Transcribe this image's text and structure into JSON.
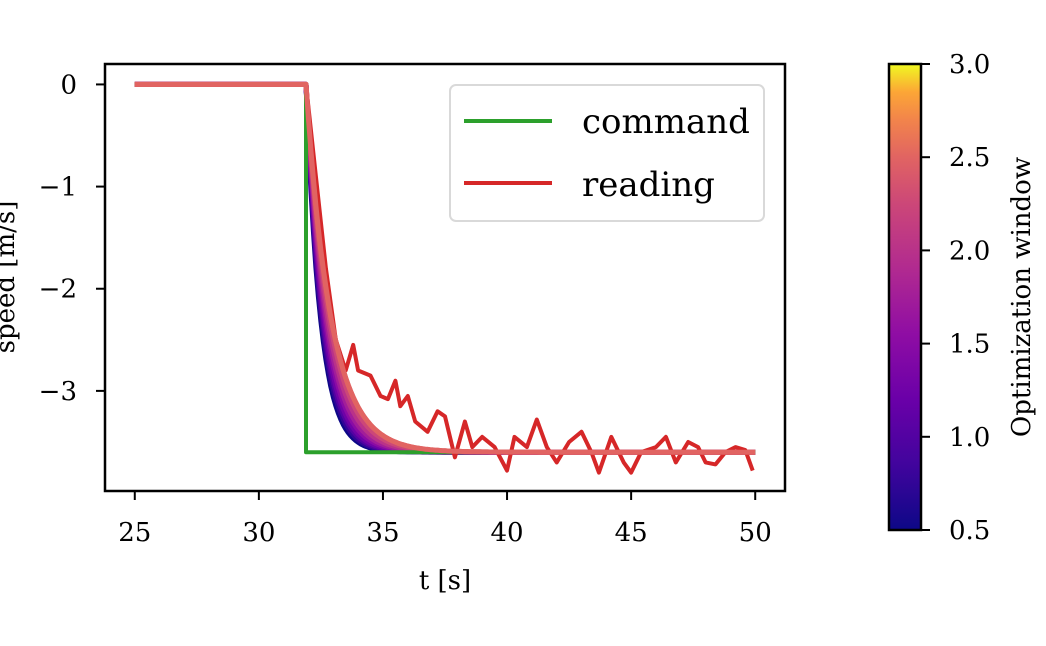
{
  "chart_data": {
    "type": "line",
    "title": "",
    "xlabel": "t [s]",
    "ylabel": "speed [m/s]",
    "xlim": [
      23.8,
      51.2
    ],
    "ylim": [
      -3.98,
      0.2
    ],
    "xticks": [
      25,
      30,
      35,
      40,
      45,
      50
    ],
    "yticks": [
      0,
      -1,
      -2,
      -3
    ],
    "xtick_labels": [
      "25",
      "30",
      "35",
      "40",
      "45",
      "50"
    ],
    "ytick_labels": [
      "0",
      "−1",
      "−2",
      "−3"
    ],
    "grid": false,
    "legend": {
      "placement": "top-right",
      "entries": [
        "command",
        "reading"
      ]
    },
    "colors": {
      "command": "#2ca02c",
      "reading": "#d62728"
    },
    "series": [
      {
        "name": "command",
        "color": "#2ca02c",
        "x": [
          25,
          31.9,
          31.9,
          50
        ],
        "y": [
          0,
          0,
          -3.6,
          -3.6
        ]
      },
      {
        "name": "reading",
        "color": "#d62728",
        "x": [
          25,
          31.9,
          32.3,
          32.7,
          33.1,
          33.5,
          33.8,
          34.0,
          34.5,
          34.9,
          35.2,
          35.5,
          35.7,
          36.0,
          36.3,
          36.8,
          37.2,
          37.5,
          37.9,
          38.3,
          38.6,
          39.0,
          39.5,
          40.0,
          40.3,
          40.8,
          41.2,
          41.6,
          42.0,
          42.5,
          43.0,
          43.4,
          43.7,
          44.2,
          44.7,
          45.0,
          45.4,
          46.0,
          46.4,
          46.8,
          47.3,
          47.7,
          48.0,
          48.4,
          48.8,
          49.2,
          49.6,
          49.9
        ],
        "y": [
          0,
          0,
          -0.9,
          -1.8,
          -2.5,
          -2.8,
          -2.55,
          -2.8,
          -2.85,
          -3.05,
          -3.08,
          -2.9,
          -3.15,
          -3.05,
          -3.3,
          -3.4,
          -3.2,
          -3.25,
          -3.65,
          -3.3,
          -3.55,
          -3.45,
          -3.55,
          -3.78,
          -3.45,
          -3.55,
          -3.28,
          -3.55,
          -3.7,
          -3.5,
          -3.4,
          -3.6,
          -3.8,
          -3.45,
          -3.7,
          -3.8,
          -3.6,
          -3.55,
          -3.45,
          -3.7,
          -3.5,
          -3.55,
          -3.7,
          -3.72,
          -3.6,
          -3.55,
          -3.58,
          -3.78
        ]
      }
    ],
    "response_curves": {
      "t_start": 31.9,
      "t_end": 50,
      "final_value": -3.6,
      "windows": [
        0.5,
        0.75,
        1.0,
        1.25,
        1.5,
        1.75,
        2.0,
        2.25,
        2.5
      ],
      "time_constants": [
        0.58,
        0.62,
        0.66,
        0.7,
        0.75,
        0.8,
        0.86,
        0.93,
        1.0
      ]
    },
    "colorbar": {
      "label": "Optimization window",
      "colormap": "plasma",
      "range": [
        0.5,
        3.0
      ],
      "ticks": [
        0.5,
        1.0,
        1.5,
        2.0,
        2.5,
        3.0
      ],
      "tick_labels": [
        "0.5",
        "1.0",
        "1.5",
        "2.0",
        "2.5",
        "3.0"
      ]
    }
  }
}
